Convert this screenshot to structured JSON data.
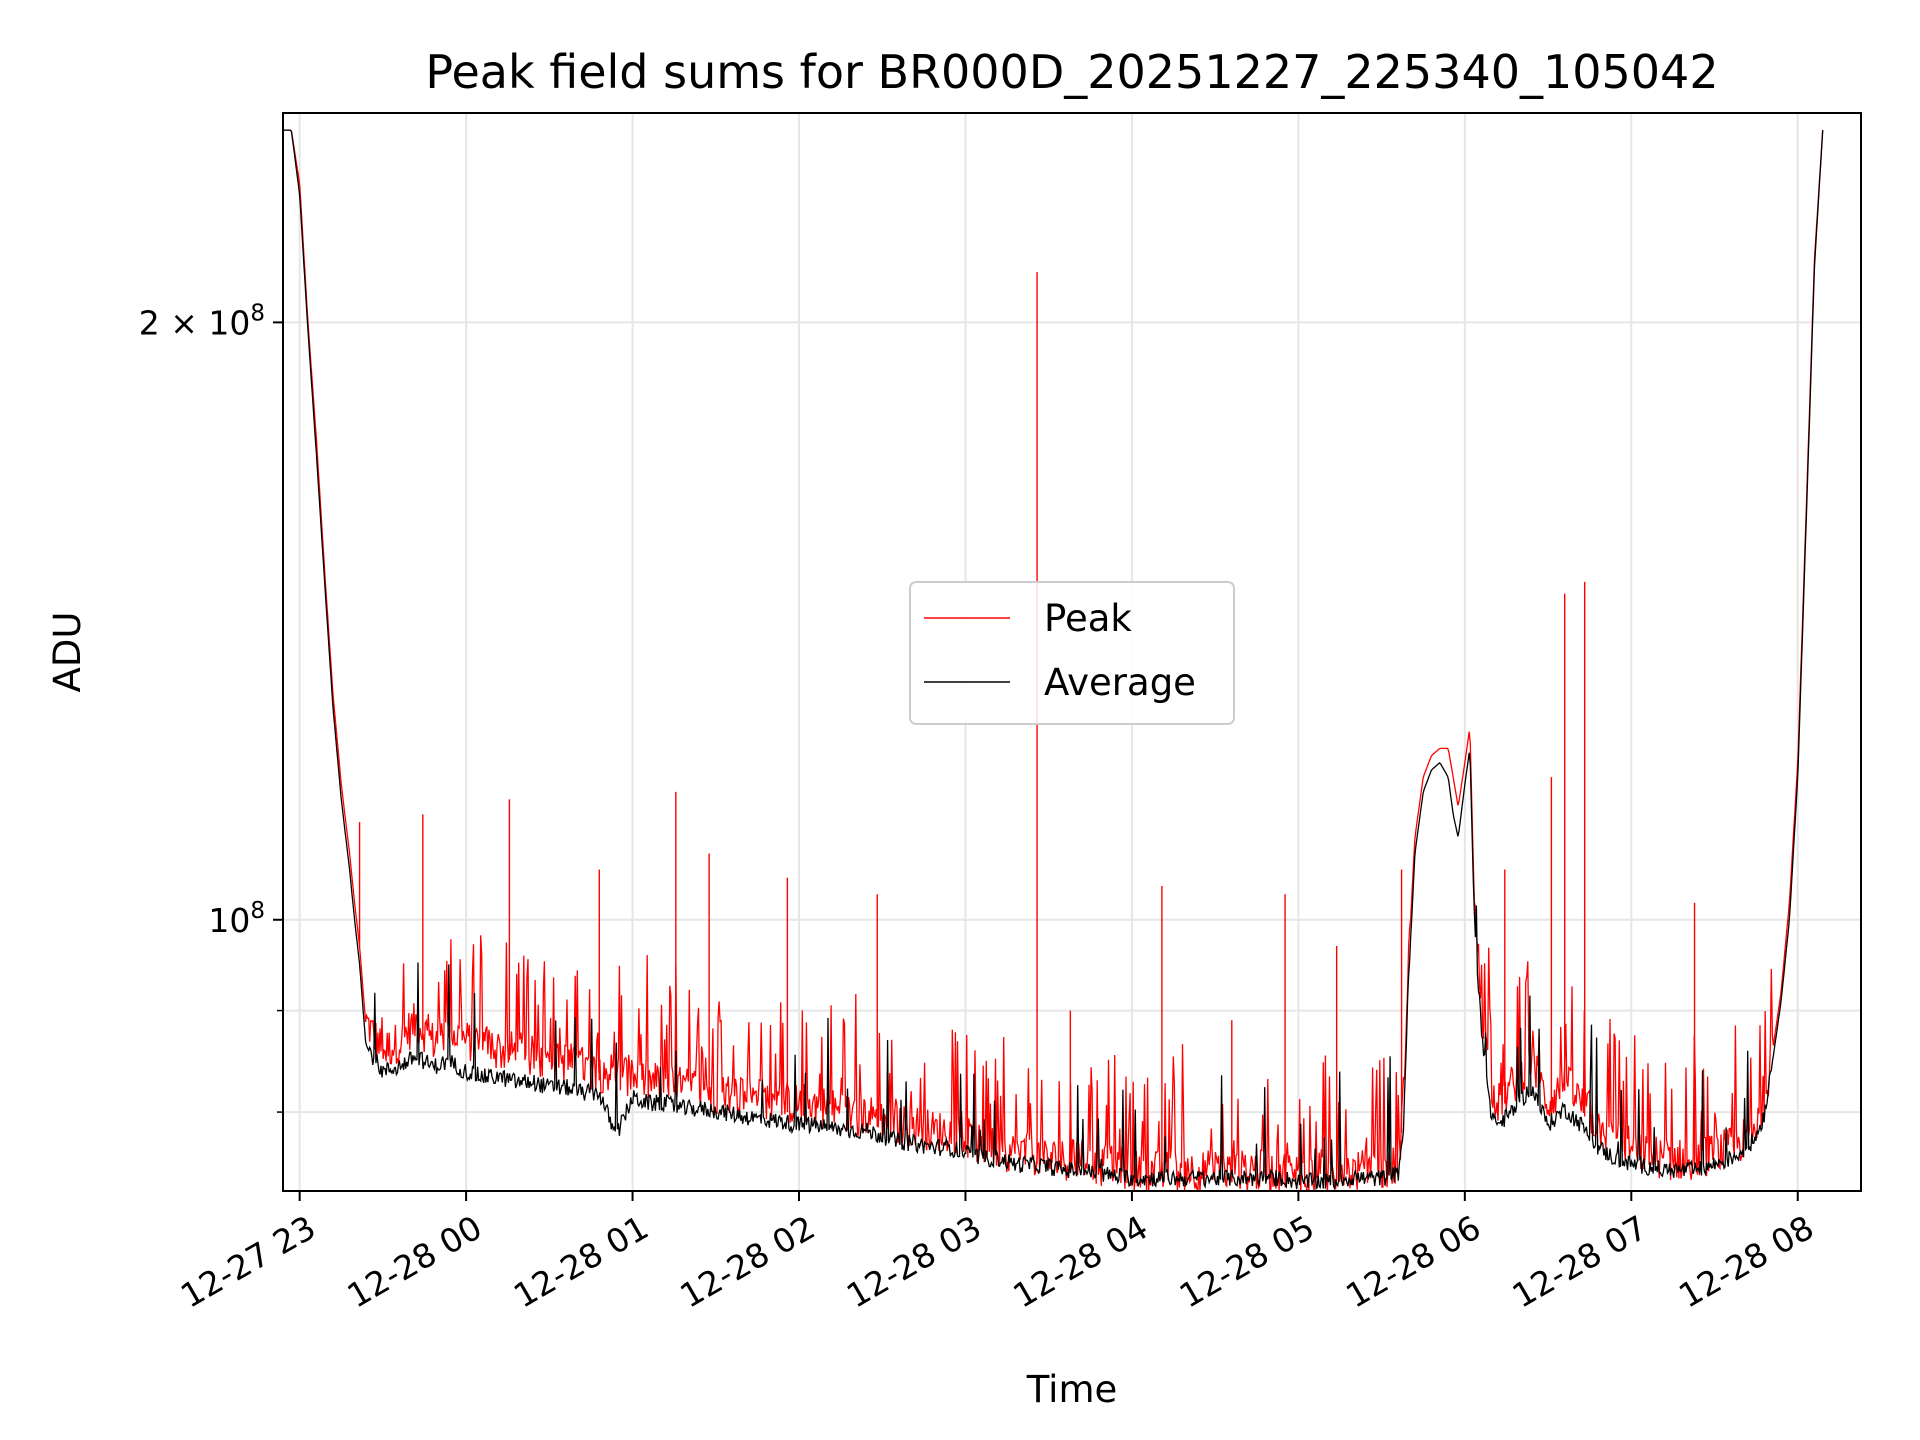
{
  "chart_data": {
    "type": "line",
    "title": "Peak field sums for BR000D_20251227_225340_105042",
    "xlabel": "Time",
    "ylabel": "ADU",
    "yscale": "log",
    "ylim": [
      73000000,
      255000000
    ],
    "xlim": [
      22.9,
      32.38
    ],
    "x_unit": "hours since 12-27 00:00",
    "grid": true,
    "legend_position": "center",
    "x_ticks": [
      {
        "value": 23,
        "label": "12-27 23"
      },
      {
        "value": 24,
        "label": "12-28 00"
      },
      {
        "value": 25,
        "label": "12-28 01"
      },
      {
        "value": 26,
        "label": "12-28 02"
      },
      {
        "value": 27,
        "label": "12-28 03"
      },
      {
        "value": 28,
        "label": "12-28 04"
      },
      {
        "value": 29,
        "label": "12-28 05"
      },
      {
        "value": 30,
        "label": "12-28 06"
      },
      {
        "value": 31,
        "label": "12-28 07"
      },
      {
        "value": 32,
        "label": "12-28 08"
      }
    ],
    "y_major_ticks": [
      {
        "value": 100000000,
        "mantissa": "",
        "base": "10",
        "exp": "8"
      },
      {
        "value": 200000000,
        "mantissa": "2 × ",
        "base": "10",
        "exp": "8"
      }
    ],
    "y_minor_ticks": [
      80000000,
      90000000
    ],
    "series": [
      {
        "name": "Peak",
        "color": "#ff0000",
        "x": [
          22.89,
          22.95,
          23.0,
          23.05,
          23.1,
          23.15,
          23.2,
          23.25,
          23.3,
          23.33,
          23.36,
          23.4,
          23.5,
          23.6,
          23.7,
          23.8,
          23.9,
          24.0,
          24.1,
          24.2,
          24.3,
          24.4,
          24.5,
          24.6,
          24.7,
          24.8,
          24.9,
          25.0,
          25.1,
          25.2,
          25.3,
          25.4,
          25.5,
          25.6,
          25.7,
          25.8,
          25.9,
          26.0,
          26.1,
          26.2,
          26.3,
          26.4,
          26.5,
          26.6,
          26.7,
          26.8,
          26.9,
          27.0,
          27.1,
          27.2,
          27.3,
          27.4,
          27.5,
          27.6,
          27.7,
          27.8,
          27.9,
          28.0,
          28.1,
          28.2,
          28.3,
          28.4,
          28.5,
          28.6,
          28.7,
          28.8,
          28.9,
          29.0,
          29.1,
          29.2,
          29.3,
          29.4,
          29.5,
          29.6,
          29.63,
          29.66,
          29.7,
          29.75,
          29.8,
          29.85,
          29.9,
          29.93,
          29.96,
          30.0,
          30.03,
          30.06,
          30.1,
          30.15,
          30.2,
          30.3,
          30.4,
          30.5,
          30.6,
          30.7,
          30.8,
          30.9,
          31.0,
          31.1,
          31.2,
          31.3,
          31.4,
          31.5,
          31.6,
          31.7,
          31.75,
          31.8,
          31.85,
          31.9,
          31.95,
          32.0,
          32.05,
          32.1,
          32.15
        ],
        "values": [
          250000000,
          250000000,
          235000000,
          200000000,
          175000000,
          150000000,
          130000000,
          117000000,
          108000000,
          102000000,
          97000000,
          88000000,
          85000000,
          86000000,
          88000000,
          86000000,
          87000000,
          86000000,
          86000000,
          85000000,
          85000000,
          84500000,
          84000000,
          84000000,
          83500000,
          83000000,
          83000000,
          82500000,
          82000000,
          82000000,
          81500000,
          81500000,
          81000000,
          81000000,
          80500000,
          80500000,
          80000000,
          80000000,
          80000000,
          79500000,
          79000000,
          79000000,
          78500000,
          78000000,
          78000000,
          77500000,
          77500000,
          77000000,
          76000000,
          76000000,
          75500000,
          75500000,
          75000000,
          75000000,
          75000000,
          74500000,
          74500000,
          74000000,
          74000000,
          74000000,
          74000000,
          74000000,
          74000000,
          74000000,
          74000000,
          74000000,
          74000000,
          73800000,
          73800000,
          73800000,
          74000000,
          74000000,
          74000000,
          74500000,
          80000000,
          95000000,
          110000000,
          118000000,
          121000000,
          122000000,
          122000000,
          118000000,
          114000000,
          120000000,
          125000000,
          100000000,
          90000000,
          82000000,
          80000000,
          82000000,
          84000000,
          80000000,
          82000000,
          80000000,
          78000000,
          77000000,
          76000000,
          75500000,
          75000000,
          75000000,
          75000000,
          75500000,
          76000000,
          77000000,
          78000000,
          80000000,
          86000000,
          92000000,
          102000000,
          120000000,
          160000000,
          215000000,
          250000000
        ]
      },
      {
        "name": "Average",
        "color": "#000000",
        "x": [
          22.89,
          22.95,
          23.0,
          23.05,
          23.1,
          23.15,
          23.2,
          23.25,
          23.3,
          23.33,
          23.36,
          23.4,
          23.5,
          23.6,
          23.7,
          23.8,
          23.9,
          24.0,
          24.1,
          24.2,
          24.3,
          24.4,
          24.5,
          24.6,
          24.7,
          24.8,
          24.9,
          25.0,
          25.1,
          25.2,
          25.3,
          25.4,
          25.5,
          25.6,
          25.7,
          25.8,
          25.9,
          26.0,
          26.1,
          26.2,
          26.3,
          26.4,
          26.5,
          26.6,
          26.7,
          26.8,
          26.9,
          27.0,
          27.1,
          27.2,
          27.3,
          27.4,
          27.5,
          27.6,
          27.7,
          27.8,
          27.9,
          28.0,
          28.1,
          28.2,
          28.3,
          28.4,
          28.5,
          28.6,
          28.7,
          28.8,
          28.9,
          29.0,
          29.1,
          29.2,
          29.3,
          29.4,
          29.5,
          29.6,
          29.63,
          29.66,
          29.7,
          29.75,
          29.8,
          29.85,
          29.9,
          29.93,
          29.96,
          30.0,
          30.03,
          30.06,
          30.1,
          30.15,
          30.2,
          30.3,
          30.4,
          30.5,
          30.6,
          30.7,
          30.8,
          30.9,
          31.0,
          31.1,
          31.2,
          31.3,
          31.4,
          31.5,
          31.6,
          31.7,
          31.75,
          31.8,
          31.85,
          31.9,
          31.95,
          32.0,
          32.05,
          32.1,
          32.15
        ],
        "values": [
          250000000,
          250000000,
          232000000,
          198000000,
          172000000,
          148000000,
          128000000,
          115000000,
          106000000,
          100000000,
          95000000,
          86000000,
          83500000,
          84000000,
          85000000,
          84000000,
          84500000,
          83500000,
          83000000,
          83000000,
          82500000,
          82500000,
          82000000,
          82000000,
          81500000,
          81500000,
          77500000,
          81000000,
          80500000,
          80500000,
          80000000,
          80000000,
          79800000,
          79500000,
          79200000,
          79000000,
          78800000,
          78500000,
          78500000,
          78200000,
          78000000,
          78000000,
          77500000,
          77000000,
          76800000,
          76500000,
          76500000,
          76000000,
          75500000,
          75500000,
          75000000,
          75000000,
          74800000,
          74500000,
          74500000,
          74200000,
          74000000,
          73800000,
          73800000,
          73800000,
          73800000,
          73800000,
          73800000,
          73800000,
          73800000,
          73800000,
          73800000,
          73500000,
          73500000,
          73500000,
          73800000,
          73800000,
          73800000,
          74200000,
          78000000,
          92000000,
          108000000,
          116000000,
          119000000,
          120000000,
          118000000,
          113000000,
          110000000,
          117000000,
          122000000,
          98000000,
          88000000,
          80000000,
          78500000,
          80000000,
          82000000,
          78500000,
          80000000,
          78500000,
          76500000,
          75500000,
          75000000,
          74800000,
          74500000,
          74500000,
          74500000,
          75000000,
          75500000,
          76500000,
          77500000,
          79500000,
          85000000,
          91000000,
          100000000,
          118000000,
          158000000,
          213000000,
          250000000
        ]
      }
    ],
    "spikes": [
      {
        "x": 27.43,
        "value": 212000000
      },
      {
        "x": 30.6,
        "value": 146000000
      },
      {
        "x": 30.72,
        "value": 148000000
      },
      {
        "x": 24.26,
        "value": 115000000
      },
      {
        "x": 25.26,
        "value": 116000000
      },
      {
        "x": 23.74,
        "value": 113000000
      },
      {
        "x": 24.8,
        "value": 106000000
      },
      {
        "x": 28.18,
        "value": 104000000
      },
      {
        "x": 28.92,
        "value": 103000000
      },
      {
        "x": 29.62,
        "value": 106000000
      },
      {
        "x": 31.38,
        "value": 102000000
      },
      {
        "x": 26.47,
        "value": 103000000
      },
      {
        "x": 25.46,
        "value": 108000000
      },
      {
        "x": 25.93,
        "value": 105000000
      },
      {
        "x": 30.24,
        "value": 106000000
      },
      {
        "x": 30.52,
        "value": 118000000
      },
      {
        "x": 29.23,
        "value": 97000000
      },
      {
        "x": 27.63,
        "value": 90000000
      },
      {
        "x": 28.6,
        "value": 89000000
      },
      {
        "x": 23.36,
        "value": 112000000
      }
    ]
  }
}
